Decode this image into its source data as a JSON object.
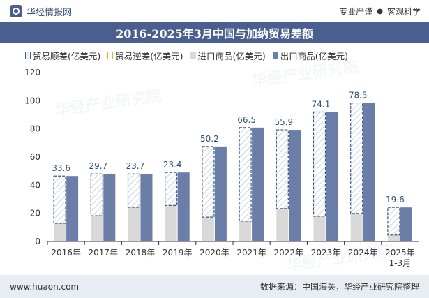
{
  "header": {
    "brand": "华经情报网",
    "tags": [
      "专业严谨",
      "客观科学"
    ]
  },
  "footer": {
    "website": "www.huaon.com",
    "source": "数据来源：中国海关，华经产业研究院整理"
  },
  "watermarks": [
    "华经产业研究院",
    "www.huaon.com"
  ],
  "colors": {
    "title_bg": "#4a5f8f",
    "export": "#6b7ea8",
    "import": "#d9d9d9",
    "surplus_border": "#3a5a82",
    "deficit_border": "#e1b52a",
    "footer_bg": "#e8ecf3"
  },
  "chart_data": {
    "type": "bar",
    "title": "2016-2025年3月中国与加纳贸易差额",
    "legend": [
      "贸易顺差(亿美元)",
      "贸易逆差(亿美元)",
      "进口商品(亿美元)",
      "出口商品(亿美元)"
    ],
    "legend_position": "top",
    "categories": [
      "2016年",
      "2017年",
      "2018年",
      "2019年",
      "2020年",
      "2021年",
      "2022年",
      "2023年",
      "2024年",
      "2025年\n1-3月"
    ],
    "series": [
      {
        "name": "贸易顺差(亿美元)",
        "values": [
          33.6,
          29.7,
          23.7,
          23.4,
          50.2,
          66.5,
          55.9,
          74.1,
          78.5,
          19.6
        ]
      },
      {
        "name": "贸易逆差(亿美元)",
        "values": [
          0,
          0,
          0,
          0,
          0,
          0,
          0,
          0,
          0,
          0
        ]
      },
      {
        "name": "进口商品(亿美元)",
        "values": [
          12.9,
          18.3,
          24.3,
          25.6,
          17.3,
          14.4,
          23.4,
          17.9,
          19.9,
          4.6
        ]
      },
      {
        "name": "出口商品(亿美元)",
        "values": [
          46.5,
          48.0,
          48.0,
          49.0,
          67.5,
          80.9,
          79.3,
          92.0,
          98.4,
          24.2
        ]
      }
    ],
    "ylim": [
      0,
      120
    ],
    "yticks": [
      0,
      20,
      40,
      60,
      80,
      100,
      120
    ],
    "grid": false
  }
}
